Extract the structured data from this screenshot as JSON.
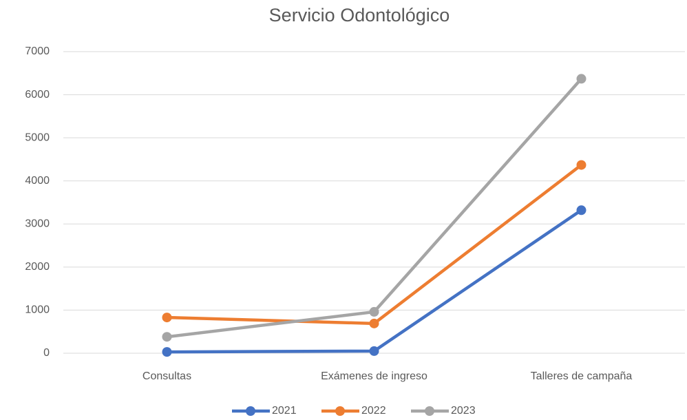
{
  "chart_data": {
    "type": "line",
    "title": "Servicio Odontológico",
    "categories": [
      "Consultas",
      "Exámenes de ingreso",
      "Talleres de campaña"
    ],
    "series": [
      {
        "name": "2021",
        "color": "#4472c4",
        "values": [
          30,
          50,
          3320
        ]
      },
      {
        "name": "2022",
        "color": "#ed7d31",
        "values": [
          830,
          690,
          4370
        ]
      },
      {
        "name": "2023",
        "color": "#a5a5a5",
        "values": [
          380,
          960,
          6370
        ]
      }
    ],
    "ylim": [
      0,
      7000
    ],
    "yticks": [
      0,
      1000,
      2000,
      3000,
      4000,
      5000,
      6000,
      7000
    ],
    "grid": true,
    "legend": "bottom"
  }
}
